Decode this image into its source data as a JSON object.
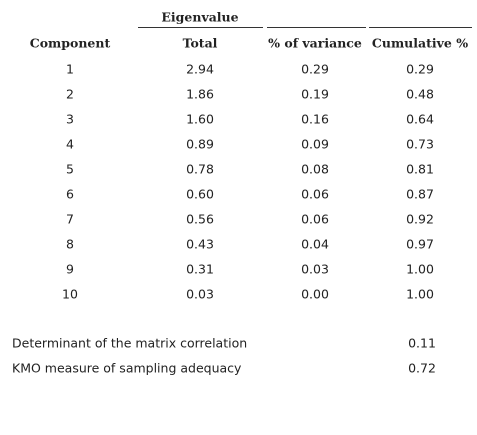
{
  "table": {
    "group_header": "Eigenvalue",
    "headers": [
      "Component",
      "Total",
      "% of variance",
      "Cumulative %"
    ],
    "rows": [
      [
        "1",
        "2.94",
        "0.29",
        "0.29"
      ],
      [
        "2",
        "1.86",
        "0.19",
        "0.48"
      ],
      [
        "3",
        "1.60",
        "0.16",
        "0.64"
      ],
      [
        "4",
        "0.89",
        "0.09",
        "0.73"
      ],
      [
        "5",
        "0.78",
        "0.08",
        "0.81"
      ],
      [
        "6",
        "0.60",
        "0.06",
        "0.87"
      ],
      [
        "7",
        "0.56",
        "0.06",
        "0.92"
      ],
      [
        "8",
        "0.43",
        "0.04",
        "0.97"
      ],
      [
        "9",
        "0.31",
        "0.03",
        "1.00"
      ],
      [
        "10",
        "0.03",
        "0.00",
        "1.00"
      ]
    ],
    "footer": [
      [
        "Determinant of the matrix correlation",
        "0.11"
      ],
      [
        "KMO measure of sampling adequacy",
        "0.72"
      ]
    ]
  }
}
